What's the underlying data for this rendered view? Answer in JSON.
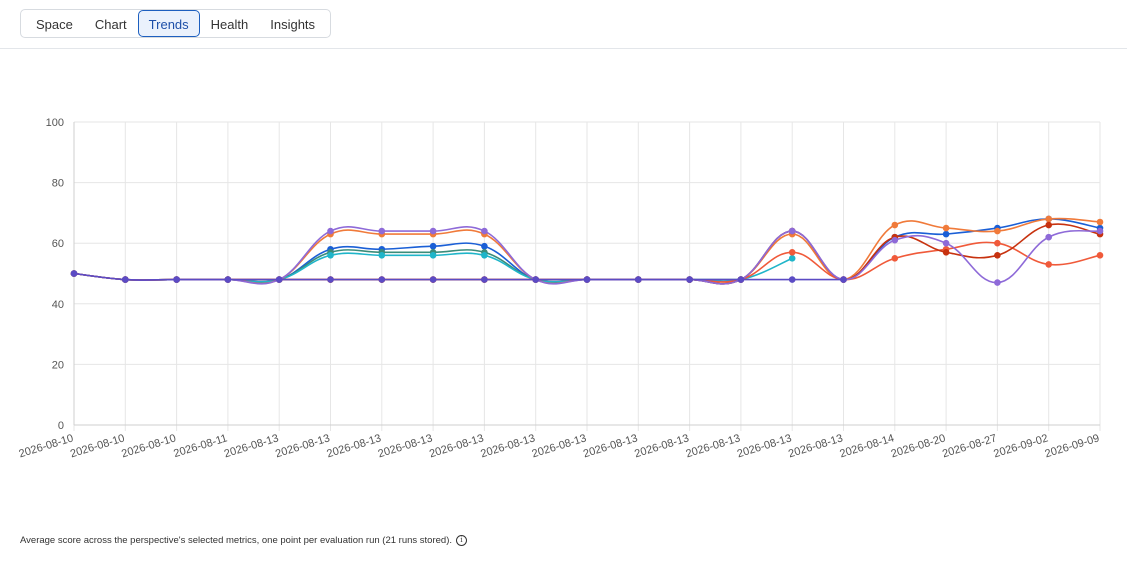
{
  "tabs": [
    {
      "label": "Space",
      "active": false
    },
    {
      "label": "Chart",
      "active": false
    },
    {
      "label": "Trends",
      "active": true
    },
    {
      "label": "Health",
      "active": false
    },
    {
      "label": "Insights",
      "active": false
    }
  ],
  "caption": "Average score across the perspective's selected metrics, one point per evaluation run (21 runs stored).",
  "info_icon": "info-icon",
  "chart_data": {
    "type": "line",
    "title": "",
    "xlabel": "",
    "ylabel": "",
    "ylim": [
      0,
      100
    ],
    "yticks": [
      0,
      20,
      40,
      60,
      80,
      100
    ],
    "grid": true,
    "categories": [
      "2026-08-10",
      "2026-08-10",
      "2026-08-10",
      "2026-08-11",
      "2026-08-13",
      "2026-08-13",
      "2026-08-13",
      "2026-08-13",
      "2026-08-13",
      "2026-08-13",
      "2026-08-13",
      "2026-08-13",
      "2026-08-13",
      "2026-08-13",
      "2026-08-13",
      "2026-08-13",
      "2026-08-14",
      "2026-08-20",
      "2026-08-27",
      "2026-09-02",
      "2026-09-09"
    ],
    "series": [
      {
        "color": "#1a5fd6",
        "values": [
          50,
          48,
          48,
          48,
          48,
          58,
          58,
          59,
          59,
          48,
          48,
          48,
          48,
          48,
          64,
          48,
          62,
          63,
          65,
          68,
          65
        ]
      },
      {
        "color": "#3b8c7a",
        "values": [
          50,
          48,
          48,
          48,
          48,
          57,
          57,
          57,
          57,
          48,
          48,
          48,
          48,
          48,
          null,
          null,
          null,
          null,
          null,
          null,
          null
        ]
      },
      {
        "color": "#1fb5c9",
        "values": [
          50,
          48,
          48,
          48,
          48,
          56,
          56,
          56,
          56,
          48,
          48,
          48,
          48,
          48,
          55,
          null,
          null,
          null,
          null,
          null,
          null
        ]
      },
      {
        "color": "#f07a3a",
        "values": [
          50,
          48,
          48,
          48,
          48,
          63,
          63,
          63,
          63,
          48,
          48,
          48,
          48,
          48,
          63,
          48,
          66,
          65,
          64,
          68,
          67
        ]
      },
      {
        "color": "#f05a3a",
        "values": [
          50,
          48,
          48,
          48,
          48,
          48,
          48,
          48,
          48,
          48,
          48,
          48,
          48,
          48,
          57,
          48,
          55,
          58,
          60,
          53,
          56
        ]
      },
      {
        "color": "#c7320f",
        "values": [
          50,
          48,
          48,
          48,
          48,
          48,
          48,
          48,
          48,
          48,
          48,
          48,
          48,
          48,
          64,
          48,
          62,
          57,
          56,
          66,
          63
        ]
      },
      {
        "color": "#8e6ad8",
        "values": [
          50,
          48,
          48,
          48,
          48,
          64,
          64,
          64,
          64,
          48,
          48,
          48,
          48,
          48,
          64,
          48,
          61,
          60,
          47,
          62,
          64
        ]
      },
      {
        "color": "#5b4bc4",
        "values": [
          50,
          48,
          48,
          48,
          48,
          48,
          48,
          48,
          48,
          48,
          48,
          48,
          48,
          48,
          48,
          48,
          null,
          null,
          null,
          null,
          null
        ]
      }
    ]
  }
}
